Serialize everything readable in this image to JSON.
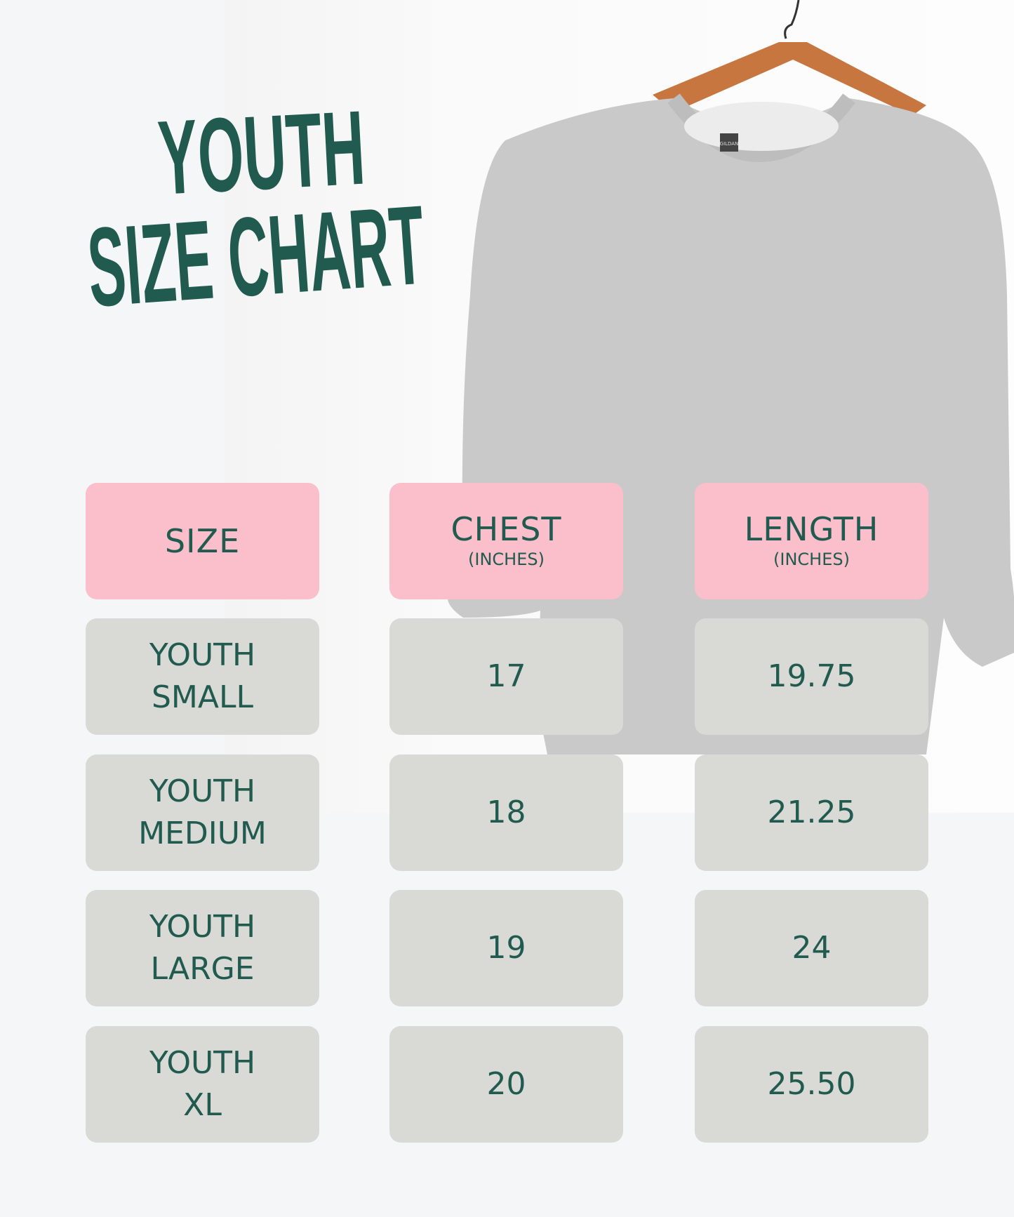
{
  "title": {
    "line1": "YOUTH",
    "line2": "SIZE CHART"
  },
  "colors": {
    "text": "#215a4f",
    "header_bg": "#fbbfcb",
    "cell_bg": "#d9dad5"
  },
  "image": {
    "subject": "gray-crewneck-sweatshirt-on-wooden-hanger",
    "tag_label": "GILDAN"
  },
  "table": {
    "headers": [
      {
        "label": "SIZE",
        "unit": ""
      },
      {
        "label": "CHEST",
        "unit": "(INCHES)"
      },
      {
        "label": "LENGTH",
        "unit": "(INCHES)"
      }
    ],
    "rows": [
      {
        "size_line1": "YOUTH",
        "size_line2": "SMALL",
        "chest": "17",
        "length": "19.75"
      },
      {
        "size_line1": "YOUTH",
        "size_line2": "MEDIUM",
        "chest": "18",
        "length": "21.25"
      },
      {
        "size_line1": "YOUTH",
        "size_line2": "LARGE",
        "chest": "19",
        "length": "24"
      },
      {
        "size_line1": "YOUTH",
        "size_line2": "XL",
        "chest": "20",
        "length": "25.50"
      }
    ]
  }
}
